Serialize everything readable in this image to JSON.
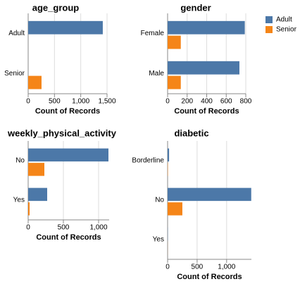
{
  "chart_data": [
    {
      "type": "bar",
      "orientation": "horizontal",
      "title": "age_group",
      "x_label": "Count of Records",
      "categories": [
        "Adult",
        "Senior"
      ],
      "series": [
        {
          "name": "Adult",
          "color": "#4c78a8",
          "values": [
            1419,
            null
          ]
        },
        {
          "name": "Senior",
          "color": "#f58518",
          "values": [
            null,
            254
          ]
        }
      ],
      "xlim": [
        0,
        1500
      ],
      "xticks": [
        0,
        500,
        {
          "value": 1000,
          "label": "1,000"
        },
        {
          "value": 1500,
          "label": "1,500"
        }
      ],
      "grid": true
    },
    {
      "type": "bar",
      "orientation": "horizontal",
      "title": "gender",
      "x_label": "Count of Records",
      "categories": [
        "Female",
        "Male"
      ],
      "series": [
        {
          "name": "Adult",
          "color": "#4c78a8",
          "values": [
            790,
            735
          ]
        },
        {
          "name": "Senior",
          "color": "#f58518",
          "values": [
            135,
            135
          ]
        }
      ],
      "xlim": [
        0,
        800
      ],
      "xticks": [
        0,
        200,
        400,
        600,
        800
      ],
      "grid": true
    },
    {
      "type": "bar",
      "orientation": "horizontal",
      "title": "weekly_physical_activity",
      "x_label": "Count of Records",
      "categories": [
        "No",
        "Yes"
      ],
      "series": [
        {
          "name": "Adult",
          "color": "#4c78a8",
          "values": [
            1140,
            270
          ]
        },
        {
          "name": "Senior",
          "color": "#f58518",
          "values": [
            230,
            20
          ]
        }
      ],
      "xlim": [
        0,
        1150
      ],
      "xticks": [
        0,
        500,
        {
          "value": 1000,
          "label": "1,000"
        }
      ],
      "grid": true
    },
    {
      "type": "bar",
      "orientation": "horizontal",
      "title": "diabetic",
      "x_label": "Count of Records",
      "categories": [
        "Borderline",
        "No",
        "Yes"
      ],
      "series": [
        {
          "name": "Adult",
          "color": "#4c78a8",
          "values": [
            25,
            1417,
            3
          ]
        },
        {
          "name": "Senior",
          "color": "#f58518",
          "values": [
            5,
            250,
            1
          ]
        }
      ],
      "xlim": [
        0,
        1420
      ],
      "xticks": [
        0,
        500,
        {
          "value": 1000,
          "label": "1,000"
        }
      ],
      "grid": true
    }
  ]
}
